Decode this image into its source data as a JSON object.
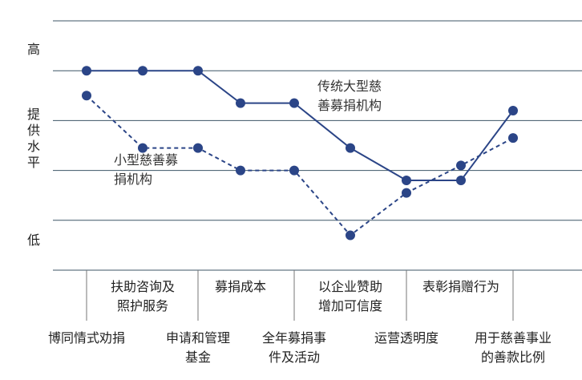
{
  "chart_data": {
    "type": "line",
    "y_labels": {
      "high": "高",
      "middle": "提供水平",
      "low": "低"
    },
    "categories": [
      "博同情式劝捐",
      "扶助咨询及照护服务",
      "申请和管理基金",
      "募捐成本",
      "全年募捐事件及活动",
      "以企业赞助增加可信度",
      "运营透明度",
      "表彰捐赠行为",
      "用于慈善事业的善款比例"
    ],
    "series": [
      {
        "name": "传统大型慈善募捐机构",
        "color": "#2b4587",
        "dash": false,
        "values": [
          4,
          4,
          4,
          3.35,
          3.35,
          2.45,
          1.8,
          1.8,
          3.2
        ]
      },
      {
        "name": "小型慈善募捐机构",
        "color": "#2b4587",
        "dash": true,
        "values": [
          3.5,
          2.45,
          2.45,
          2,
          2,
          0.7,
          1.55,
          2.1,
          2.65
        ]
      }
    ],
    "ylim": [
      0,
      5
    ],
    "yticks": [
      0,
      1,
      2,
      3,
      4,
      5
    ],
    "grid": true
  }
}
